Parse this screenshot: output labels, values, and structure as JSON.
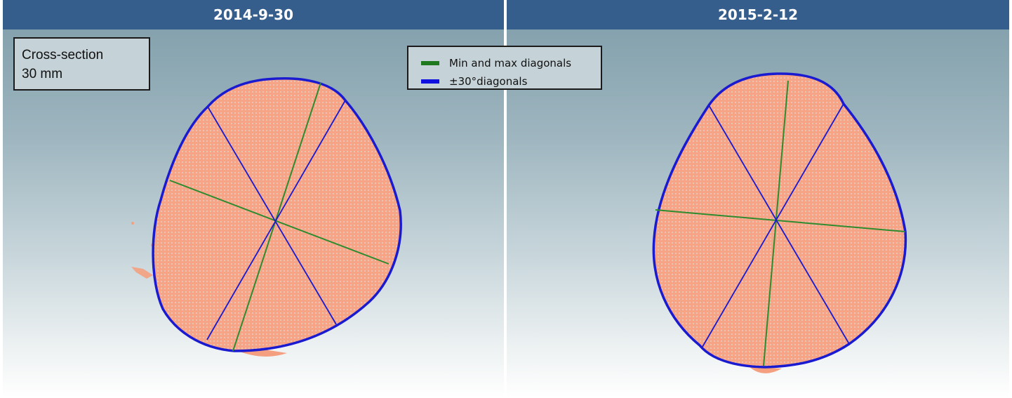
{
  "panels": [
    {
      "title": "2014-9-30"
    },
    {
      "title": "2015-2-12"
    }
  ],
  "infobox": {
    "line1": "Cross-section",
    "line2": "30 mm"
  },
  "legend": {
    "items": [
      {
        "label": "Min and max diagonals",
        "color": "#1f7a1f"
      },
      {
        "label": "±30°diagonals",
        "color": "#1010e0"
      }
    ]
  },
  "colors": {
    "header": "#355e8c",
    "fill": "#f4a080",
    "outline": "#1a1ad0",
    "minmax": "#2e8b2e",
    "diag30": "#1a1ad0"
  }
}
